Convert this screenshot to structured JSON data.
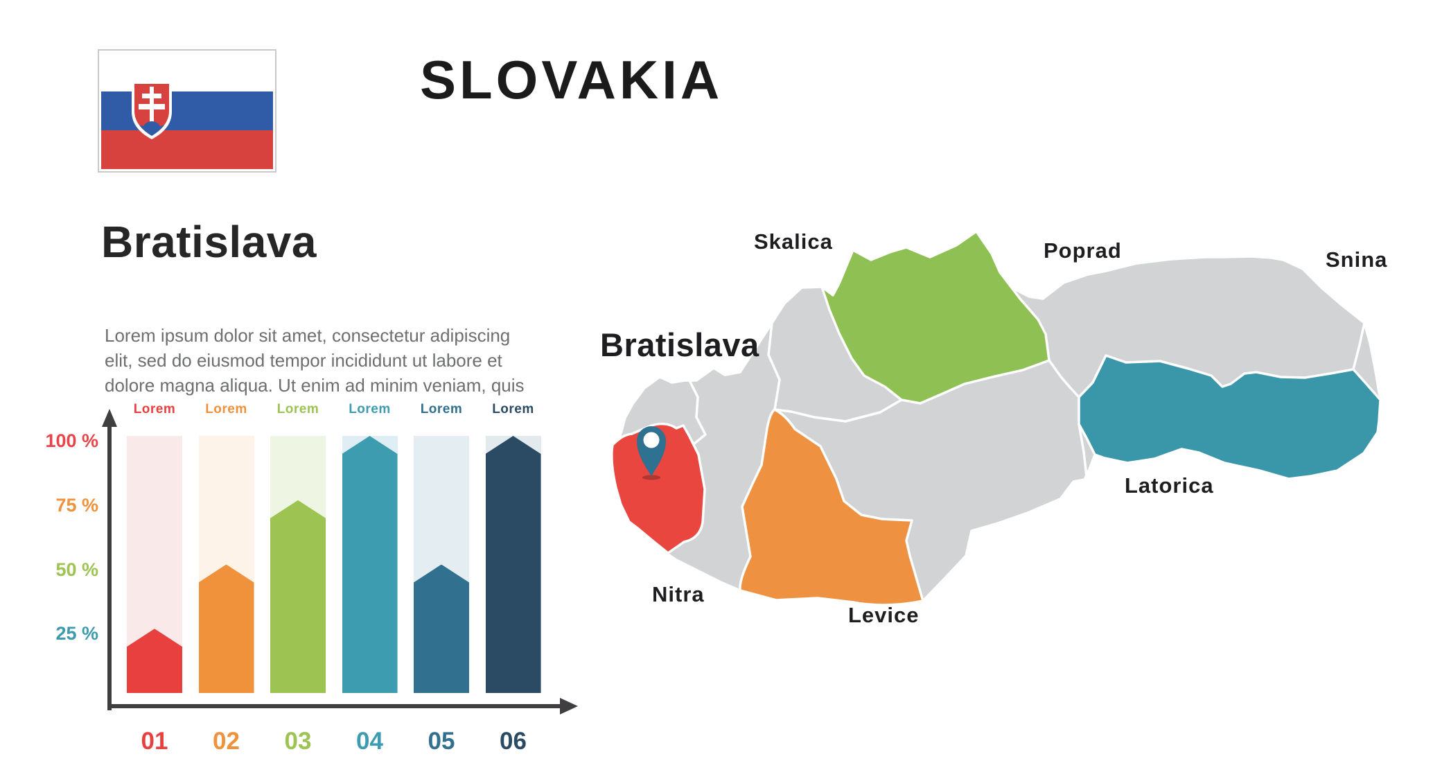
{
  "header": {
    "title": "SLOVAKIA",
    "flag": {
      "name": "flag-of-slovakia",
      "colors": {
        "white": "#ffffff",
        "blue": "#2f5ba7",
        "red": "#d8423e",
        "frame": "#c9c9c9"
      }
    }
  },
  "left_panel": {
    "heading": "Bratislava",
    "paragraph_lines": [
      "Lorem ipsum dolor sit amet, consectetur adipiscing",
      "elit, sed do eiusmod tempor incididunt ut labore et",
      "dolore magna aliqua. Ut enim ad minim veniam, quis"
    ]
  },
  "chart_data": {
    "type": "bar",
    "categories": [
      "01",
      "02",
      "03",
      "04",
      "05",
      "06"
    ],
    "values": [
      25,
      50,
      75,
      100,
      50,
      100
    ],
    "xlabel": "",
    "ylabel": "",
    "ylim": [
      0,
      100
    ],
    "grid": false,
    "axis_color": "#403e41",
    "bars": [
      {
        "label": "01",
        "caption": "Lorem",
        "value": 25,
        "color": "#e8403f",
        "track": "#fae9e9"
      },
      {
        "label": "02",
        "caption": "Lorem",
        "value": 50,
        "color": "#f0913c",
        "track": "#fdf3e8"
      },
      {
        "label": "03",
        "caption": "Lorem",
        "value": 75,
        "color": "#9dc353",
        "track": "#eef5e2"
      },
      {
        "label": "04",
        "caption": "Lorem",
        "value": 100,
        "color": "#3e9cb0",
        "track": "#dfeef5"
      },
      {
        "label": "05",
        "caption": "Lorem",
        "value": 50,
        "color": "#31708f",
        "track": "#e4edf2"
      },
      {
        "label": "06",
        "caption": "Lorem",
        "value": 100,
        "color": "#2b4a63",
        "track": "#e3eaee"
      }
    ],
    "y_ticks": [
      {
        "label": "100 %",
        "value": 100,
        "color": "#e8444a"
      },
      {
        "label": "75 %",
        "value": 75,
        "color": "#f0913c"
      },
      {
        "label": "50 %",
        "value": 50,
        "color": "#9dc353"
      },
      {
        "label": "25 %",
        "value": 25,
        "color": "#3d9aad"
      }
    ]
  },
  "map": {
    "country": "Slovakia",
    "base_color": "#d2d3d5",
    "border_color": "#ffffff",
    "pin": {
      "color": "#2e7191",
      "hole_color": "#ffffff",
      "on_region": "bratislava-region"
    },
    "regions": [
      {
        "id": "red",
        "name": "bratislava-region",
        "color": "#e94640"
      },
      {
        "id": "orange",
        "name": "nitra-levice-region",
        "color": "#ee9140"
      },
      {
        "id": "green",
        "name": "skalica-region",
        "color": "#8fc054"
      },
      {
        "id": "teal",
        "name": "latorica-region",
        "color": "#3a97aa"
      }
    ],
    "labels": {
      "bratislava": "Bratislava",
      "skalica": "Skalica",
      "poprad": "Poprad",
      "snina": "Snina",
      "latorica": "Latorica",
      "nitra": "Nitra",
      "levice": "Levice"
    }
  }
}
